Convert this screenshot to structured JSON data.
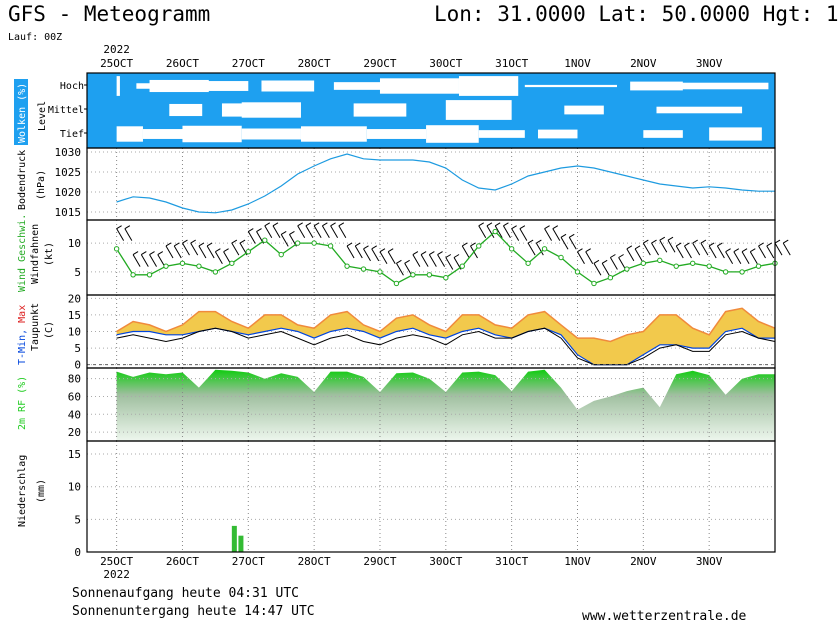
{
  "header": {
    "title": "GFS - Meteogramm",
    "coords": "Lon: 31.0000 Lat: 50.0000 Hgt: 1",
    "run": "Lauf: 00Z"
  },
  "footer": {
    "sunrise": "Sonnenaufgang heute 04:31 UTC",
    "sunset": "Sonnenuntergang heute 14:47 UTC",
    "source": "www.wetterzentrale.de"
  },
  "colors": {
    "cloud_sky": "#1ea0f0",
    "pressure": "#1e9be0",
    "wind_speed": "#22aa22",
    "dewpoint": "#000000",
    "tmin": "#0044dd",
    "tmax": "#dd2222",
    "humidity": "#22cc22",
    "precip": "#33bb33"
  },
  "chart_data": [
    {
      "type": "area",
      "name": "clouds",
      "x_ticks": [
        "25OCT",
        "26OCT",
        "27OCT",
        "28OCT",
        "29OCT",
        "30OCT",
        "31OCT",
        "1NOV",
        "2NOV",
        "3NOV"
      ],
      "year_label": "2022",
      "ylabel": "Wolken (%)",
      "sublabel": "Level",
      "levels": [
        "Hoch",
        "Mittel",
        "Tief"
      ]
    },
    {
      "type": "line",
      "name": "pressure",
      "ylabel": "Bodendruck",
      "unit": "(hPa)",
      "yticks": [
        1015,
        1020,
        1025,
        1030
      ],
      "ylim": [
        1013,
        1031
      ],
      "x": [
        0,
        0.25,
        0.5,
        0.75,
        1,
        1.25,
        1.5,
        1.75,
        2,
        2.25,
        2.5,
        2.75,
        3,
        3.25,
        3.5,
        3.75,
        4,
        4.25,
        4.5,
        4.75,
        5,
        5.25,
        5.5,
        5.75,
        6,
        6.25,
        6.5,
        6.75,
        7,
        7.25,
        7.5,
        7.75,
        8,
        8.25,
        8.5,
        8.75,
        9,
        9.25,
        9.5,
        9.75,
        10
      ],
      "y": [
        1017.5,
        1018.8,
        1018.5,
        1017.5,
        1016,
        1015,
        1014.8,
        1015.5,
        1017,
        1019,
        1021.5,
        1024.5,
        1026.5,
        1028.3,
        1029.5,
        1028.3,
        1028,
        1028,
        1028,
        1027.5,
        1026,
        1023,
        1021,
        1020.5,
        1022,
        1024,
        1025,
        1026,
        1026.5,
        1026,
        1025,
        1024,
        1023,
        1022,
        1021.5,
        1021,
        1021.3,
        1021,
        1020.5,
        1020.2,
        1020.2
      ]
    },
    {
      "type": "line",
      "name": "wind",
      "ylabel": "Wind Geschwi.",
      "sublabel": "Windfahnen",
      "unit": "(kt)",
      "yticks": [
        5,
        10
      ],
      "ylim": [
        1,
        14
      ],
      "x": [
        0,
        0.25,
        0.5,
        0.75,
        1,
        1.25,
        1.5,
        1.75,
        2,
        2.25,
        2.5,
        2.75,
        3,
        3.25,
        3.5,
        3.75,
        4,
        4.25,
        4.5,
        4.75,
        5,
        5.25,
        5.5,
        5.75,
        6,
        6.25,
        6.5,
        6.75,
        7,
        7.25,
        7.5,
        7.75,
        8,
        8.25,
        8.5,
        8.75,
        9,
        9.25,
        9.5,
        9.75,
        10
      ],
      "y": [
        9,
        4.5,
        4.5,
        6,
        6.5,
        6,
        5,
        6.5,
        8.5,
        10.5,
        8,
        10,
        10,
        9.5,
        6,
        5.5,
        5,
        3,
        4.5,
        4.5,
        4,
        6,
        9.5,
        12,
        9,
        6.5,
        9,
        7.5,
        5,
        3,
        4,
        5.5,
        6.5,
        7,
        6,
        6.5,
        6,
        5,
        5,
        6,
        6.5
      ]
    },
    {
      "type": "area",
      "name": "temperature",
      "ylabel": "T-Min, Max",
      "sublabel": "Taupunkt",
      "unit": "(C)",
      "legend": [
        "T-Min",
        "Max"
      ],
      "yticks": [
        0,
        5,
        10,
        15,
        20
      ],
      "ylim": [
        -1,
        21
      ],
      "x": [
        0,
        0.25,
        0.5,
        0.75,
        1,
        1.25,
        1.5,
        1.75,
        2,
        2.25,
        2.5,
        2.75,
        3,
        3.25,
        3.5,
        3.75,
        4,
        4.25,
        4.5,
        4.75,
        5,
        5.25,
        5.5,
        5.75,
        6,
        6.25,
        6.5,
        6.75,
        7,
        7.25,
        7.5,
        7.75,
        8,
        8.25,
        8.5,
        8.75,
        9,
        9.25,
        9.5,
        9.75,
        10
      ],
      "tmax": [
        10,
        13,
        12,
        10,
        12,
        16,
        16,
        13,
        11,
        15,
        15,
        12,
        11,
        15,
        16,
        12,
        10,
        14,
        15,
        12,
        10,
        15,
        15,
        12,
        11,
        15,
        16,
        12,
        8,
        8,
        7,
        9,
        10,
        15,
        15,
        11,
        9,
        16,
        17,
        13,
        11
      ],
      "tmin": [
        9,
        10,
        10,
        9,
        9,
        10,
        11,
        10,
        9,
        10,
        11,
        10,
        8,
        10,
        11,
        10,
        8,
        10,
        11,
        9,
        8,
        10,
        11,
        9,
        8,
        10,
        11,
        9,
        3,
        0,
        0,
        0,
        3,
        6,
        6,
        5,
        5,
        10,
        11,
        8,
        8
      ],
      "dewpoint": [
        8,
        9,
        8,
        7,
        8,
        10,
        11,
        10,
        8,
        9,
        10,
        8,
        6,
        8,
        9,
        7,
        6,
        8,
        9,
        8,
        6,
        9,
        10,
        8,
        8,
        10,
        11,
        8,
        2,
        0,
        0,
        0,
        2,
        5,
        6,
        4,
        4,
        9,
        10,
        8,
        7
      ]
    },
    {
      "type": "area",
      "name": "humidity",
      "ylabel": "2m RF (%)",
      "yticks": [
        20,
        40,
        60,
        80
      ],
      "ylim": [
        10,
        92
      ],
      "x": [
        0,
        0.25,
        0.5,
        0.75,
        1,
        1.25,
        1.5,
        1.75,
        2,
        2.25,
        2.5,
        2.75,
        3,
        3.25,
        3.5,
        3.75,
        4,
        4.25,
        4.5,
        4.75,
        5,
        5.25,
        5.5,
        5.75,
        6,
        6.25,
        6.5,
        6.75,
        7,
        7.25,
        7.5,
        7.75,
        8,
        8.25,
        8.5,
        8.75,
        9,
        9.25,
        9.5,
        9.75,
        10
      ],
      "y": [
        88,
        82,
        87,
        85,
        87,
        70,
        90,
        89,
        87,
        80,
        86,
        82,
        65,
        88,
        88,
        82,
        65,
        86,
        87,
        80,
        65,
        87,
        88,
        84,
        66,
        88,
        90,
        70,
        45,
        55,
        60,
        66,
        70,
        48,
        85,
        89,
        84,
        62,
        80,
        85,
        85
      ]
    },
    {
      "type": "bar",
      "name": "precip",
      "ylabel": "Niederschlag",
      "unit": "(mm)",
      "yticks": [
        0,
        5,
        10,
        15
      ],
      "ylim": [
        0,
        17
      ],
      "x": [
        1.75,
        1.85
      ],
      "y": [
        4,
        2.5
      ]
    }
  ]
}
